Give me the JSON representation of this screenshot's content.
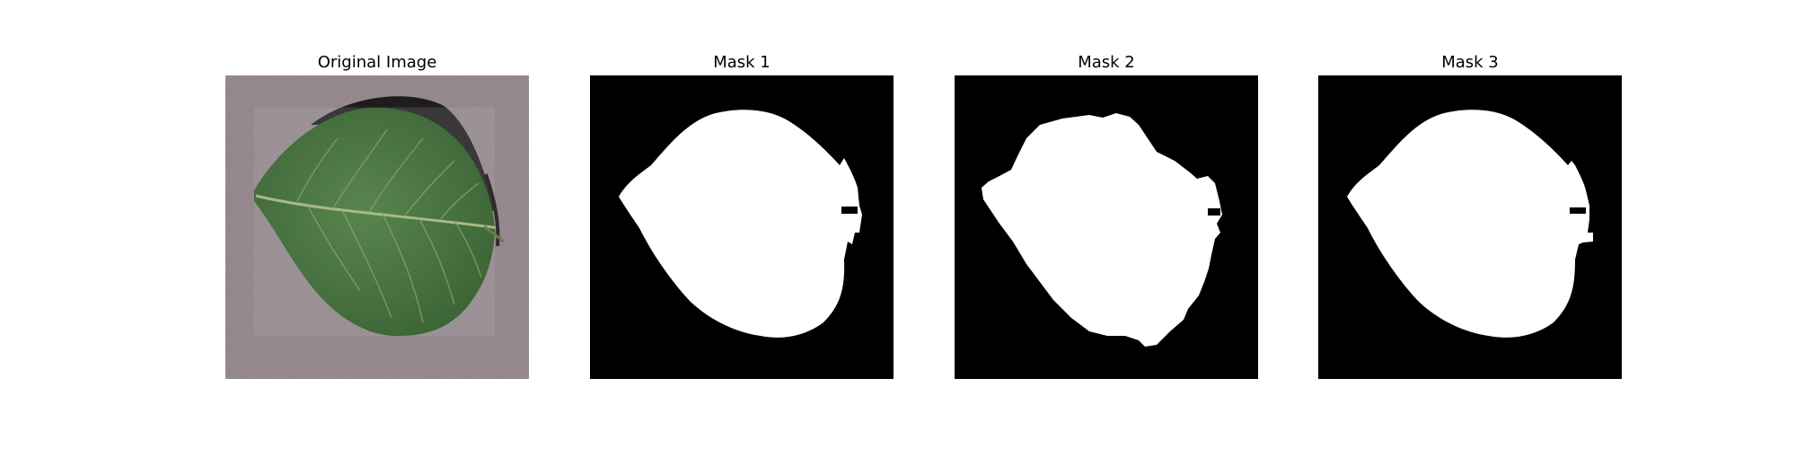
{
  "panels": [
    {
      "title": "Original Image",
      "content": "leaf-photo"
    },
    {
      "title": "Mask 1",
      "content": "leaf-mask"
    },
    {
      "title": "Mask 2",
      "content": "leaf-mask"
    },
    {
      "title": "Mask 3",
      "content": "leaf-mask"
    }
  ],
  "colors": {
    "background": "#9a8e94",
    "leaf": "#4f7a44",
    "vein": "#9eb47a",
    "shadow": "#1f1d1c",
    "mask_bg": "#000000",
    "mask_fg": "#ffffff"
  }
}
